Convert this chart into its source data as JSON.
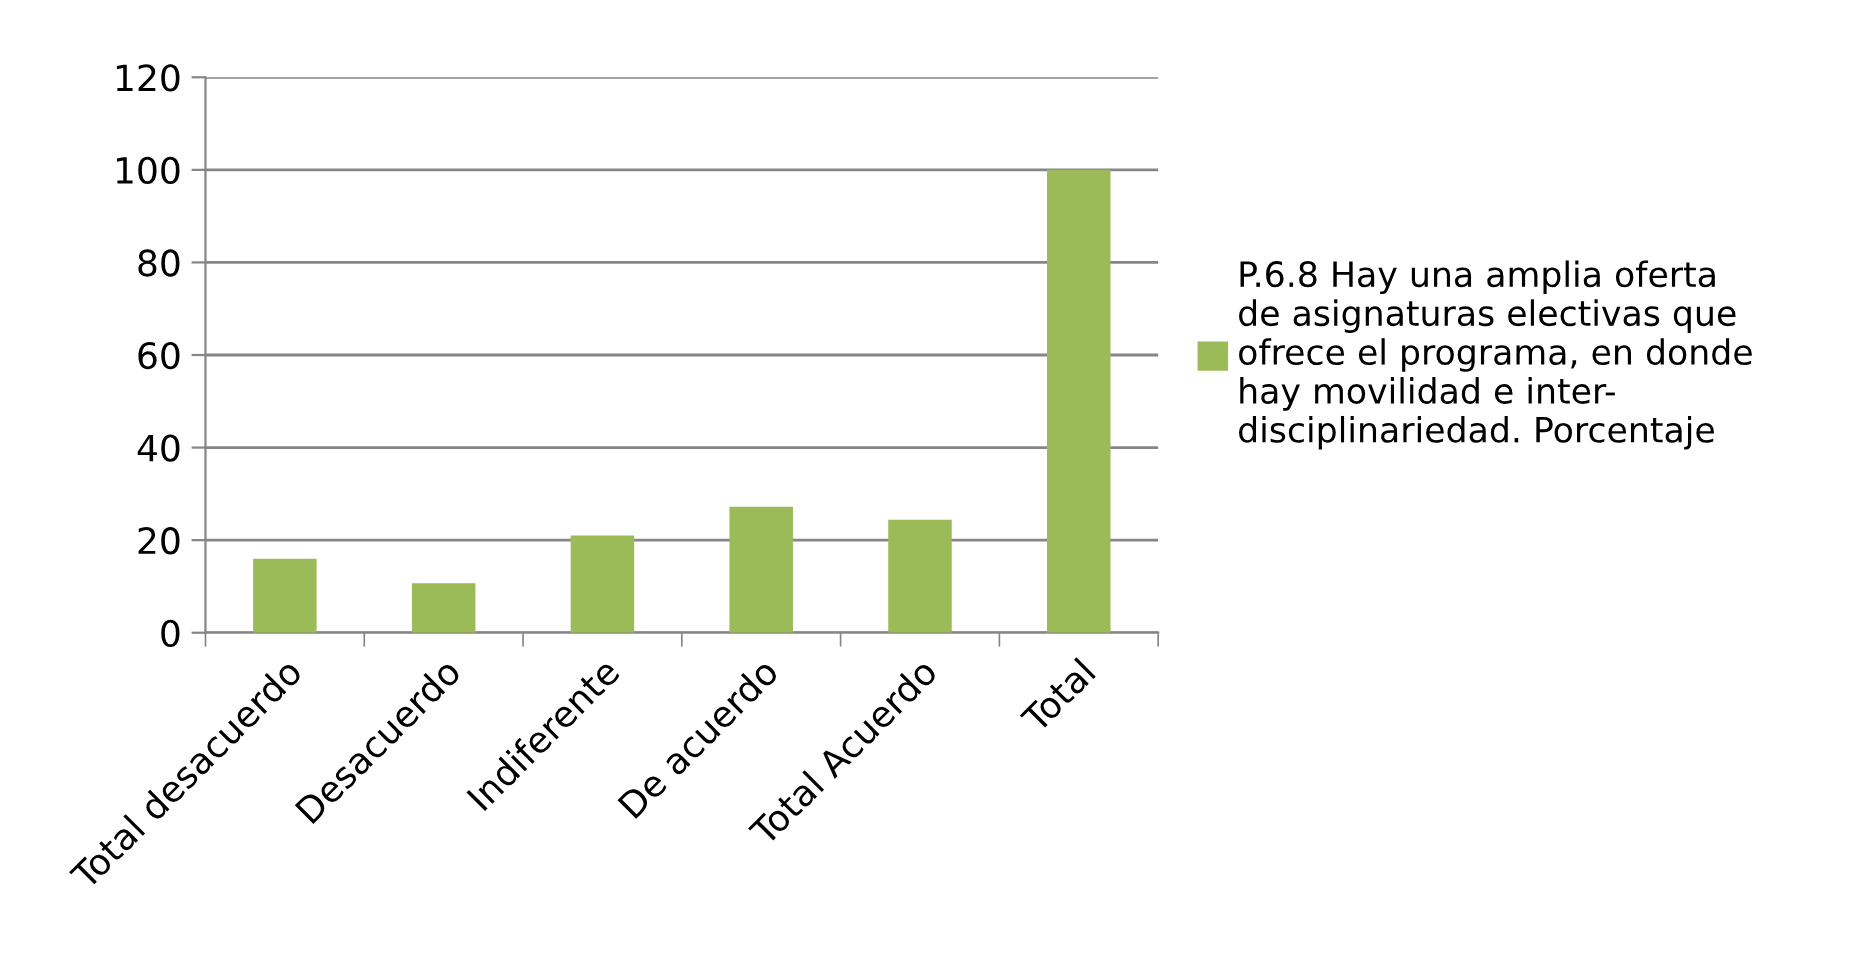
{
  "chart_data": {
    "type": "bar",
    "categories": [
      "Total desacuerdo",
      "Desacuerdo",
      "Indiferente",
      "De acuerdo",
      "Total Acuerdo",
      "Total"
    ],
    "series": [
      {
        "name": "P.6.8 Hay una amplia oferta de asignaturas electivas que ofrece el programa, en donde hay movilidad e inter-disciplinariedad. Porcentaje",
        "color": "#9bbb59",
        "values": [
          16.0,
          10.7,
          21.0,
          27.2,
          24.4,
          100
        ]
      }
    ],
    "ylim": [
      0,
      120
    ],
    "yticks": [
      0,
      20,
      40,
      60,
      80,
      100,
      120
    ],
    "grid": "y",
    "legend": "right"
  }
}
